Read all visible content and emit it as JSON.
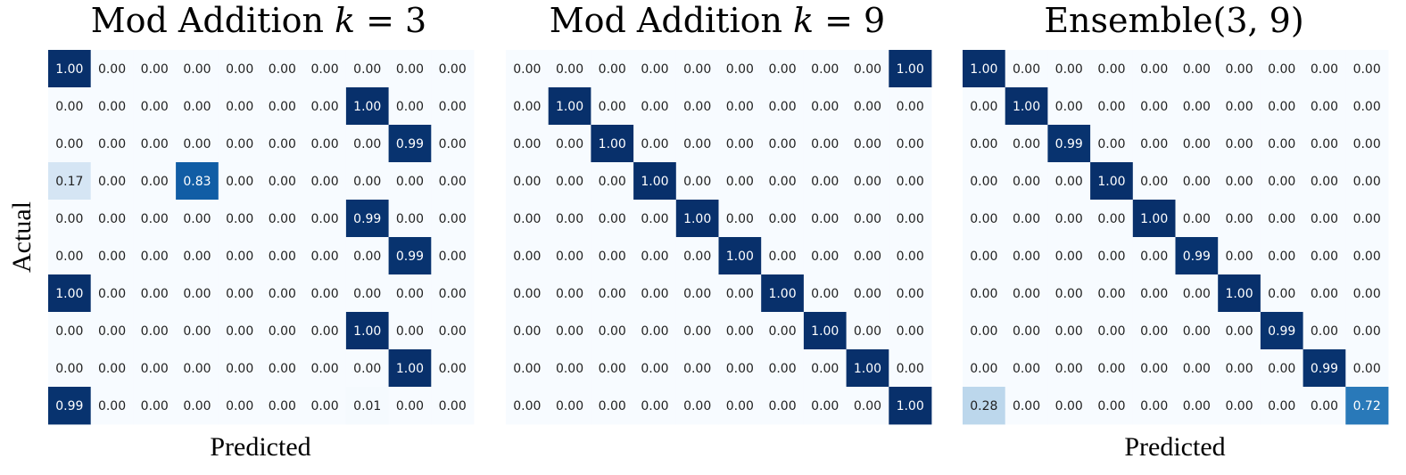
{
  "chart_data": [
    {
      "type": "heatmap",
      "title": "Mod Addition k = 3",
      "title_parts": [
        "Mod Addition ",
        "k",
        " = 3"
      ],
      "xlabel": "Predicted",
      "ylabel": "Actual",
      "colormap": "Blues",
      "value_range": [
        0,
        1
      ],
      "values": [
        [
          "1.00",
          "0.00",
          "0.00",
          "0.00",
          "0.00",
          "0.00",
          "0.00",
          "0.00",
          "0.00",
          "0.00"
        ],
        [
          "0.00",
          "0.00",
          "0.00",
          "0.00",
          "0.00",
          "0.00",
          "0.00",
          "1.00",
          "0.00",
          "0.00"
        ],
        [
          "0.00",
          "0.00",
          "0.00",
          "0.00",
          "0.00",
          "0.00",
          "0.00",
          "0.00",
          "0.99",
          "0.00"
        ],
        [
          "0.17",
          "0.00",
          "0.00",
          "0.83",
          "0.00",
          "0.00",
          "0.00",
          "0.00",
          "0.00",
          "0.00"
        ],
        [
          "0.00",
          "0.00",
          "0.00",
          "0.00",
          "0.00",
          "0.00",
          "0.00",
          "0.99",
          "0.00",
          "0.00"
        ],
        [
          "0.00",
          "0.00",
          "0.00",
          "0.00",
          "0.00",
          "0.00",
          "0.00",
          "0.00",
          "0.99",
          "0.00"
        ],
        [
          "1.00",
          "0.00",
          "0.00",
          "0.00",
          "0.00",
          "0.00",
          "0.00",
          "0.00",
          "0.00",
          "0.00"
        ],
        [
          "0.00",
          "0.00",
          "0.00",
          "0.00",
          "0.00",
          "0.00",
          "0.00",
          "1.00",
          "0.00",
          "0.00"
        ],
        [
          "0.00",
          "0.00",
          "0.00",
          "0.00",
          "0.00",
          "0.00",
          "0.00",
          "0.00",
          "1.00",
          "0.00"
        ],
        [
          "0.99",
          "0.00",
          "0.00",
          "0.00",
          "0.00",
          "0.00",
          "0.00",
          "0.01",
          "0.00",
          "0.00"
        ]
      ]
    },
    {
      "type": "heatmap",
      "title": "Mod Addition k = 9",
      "title_parts": [
        "Mod Addition ",
        "k",
        " = 9"
      ],
      "xlabel": "",
      "ylabel": "",
      "colormap": "Blues",
      "value_range": [
        0,
        1
      ],
      "values": [
        [
          "0.00",
          "0.00",
          "0.00",
          "0.00",
          "0.00",
          "0.00",
          "0.00",
          "0.00",
          "0.00",
          "1.00"
        ],
        [
          "0.00",
          "1.00",
          "0.00",
          "0.00",
          "0.00",
          "0.00",
          "0.00",
          "0.00",
          "0.00",
          "0.00"
        ],
        [
          "0.00",
          "0.00",
          "1.00",
          "0.00",
          "0.00",
          "0.00",
          "0.00",
          "0.00",
          "0.00",
          "0.00"
        ],
        [
          "0.00",
          "0.00",
          "0.00",
          "1.00",
          "0.00",
          "0.00",
          "0.00",
          "0.00",
          "0.00",
          "0.00"
        ],
        [
          "0.00",
          "0.00",
          "0.00",
          "0.00",
          "1.00",
          "0.00",
          "0.00",
          "0.00",
          "0.00",
          "0.00"
        ],
        [
          "0.00",
          "0.00",
          "0.00",
          "0.00",
          "0.00",
          "1.00",
          "0.00",
          "0.00",
          "0.00",
          "0.00"
        ],
        [
          "0.00",
          "0.00",
          "0.00",
          "0.00",
          "0.00",
          "0.00",
          "1.00",
          "0.00",
          "0.00",
          "0.00"
        ],
        [
          "0.00",
          "0.00",
          "0.00",
          "0.00",
          "0.00",
          "0.00",
          "0.00",
          "1.00",
          "0.00",
          "0.00"
        ],
        [
          "0.00",
          "0.00",
          "0.00",
          "0.00",
          "0.00",
          "0.00",
          "0.00",
          "0.00",
          "1.00",
          "0.00"
        ],
        [
          "0.00",
          "0.00",
          "0.00",
          "0.00",
          "0.00",
          "0.00",
          "0.00",
          "0.00",
          "0.00",
          "1.00"
        ]
      ]
    },
    {
      "type": "heatmap",
      "title": "Ensemble(3, 9)",
      "title_parts": [
        "Ensemble(3, 9)",
        "",
        ""
      ],
      "xlabel": "Predicted",
      "ylabel": "",
      "colormap": "Blues",
      "value_range": [
        0,
        1
      ],
      "values": [
        [
          "1.00",
          "0.00",
          "0.00",
          "0.00",
          "0.00",
          "0.00",
          "0.00",
          "0.00",
          "0.00",
          "0.00"
        ],
        [
          "0.00",
          "1.00",
          "0.00",
          "0.00",
          "0.00",
          "0.00",
          "0.00",
          "0.00",
          "0.00",
          "0.00"
        ],
        [
          "0.00",
          "0.00",
          "0.99",
          "0.00",
          "0.00",
          "0.00",
          "0.00",
          "0.00",
          "0.00",
          "0.00"
        ],
        [
          "0.00",
          "0.00",
          "0.00",
          "1.00",
          "0.00",
          "0.00",
          "0.00",
          "0.00",
          "0.00",
          "0.00"
        ],
        [
          "0.00",
          "0.00",
          "0.00",
          "0.00",
          "1.00",
          "0.00",
          "0.00",
          "0.00",
          "0.00",
          "0.00"
        ],
        [
          "0.00",
          "0.00",
          "0.00",
          "0.00",
          "0.00",
          "0.99",
          "0.00",
          "0.00",
          "0.00",
          "0.00"
        ],
        [
          "0.00",
          "0.00",
          "0.00",
          "0.00",
          "0.00",
          "0.00",
          "1.00",
          "0.00",
          "0.00",
          "0.00"
        ],
        [
          "0.00",
          "0.00",
          "0.00",
          "0.00",
          "0.00",
          "0.00",
          "0.00",
          "0.99",
          "0.00",
          "0.00"
        ],
        [
          "0.00",
          "0.00",
          "0.00",
          "0.00",
          "0.00",
          "0.00",
          "0.00",
          "0.00",
          "0.99",
          "0.00"
        ],
        [
          "0.28",
          "0.00",
          "0.00",
          "0.00",
          "0.00",
          "0.00",
          "0.00",
          "0.00",
          "0.00",
          "0.72"
        ]
      ]
    }
  ]
}
